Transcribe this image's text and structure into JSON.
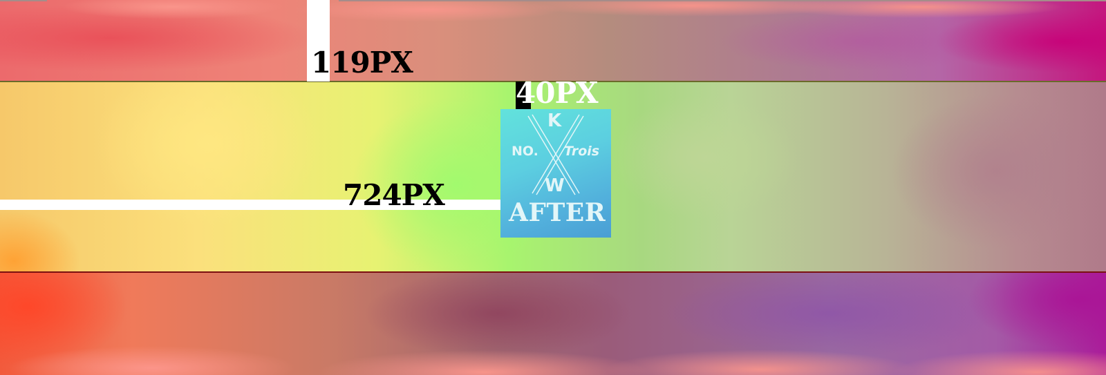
{
  "measurements": {
    "top_marker_label": "119PX",
    "side_marker_label": "724PX",
    "logo_marker_label": "40PX"
  },
  "logo": {
    "top_letter": "K",
    "bottom_letter": "W",
    "left_text": "NO.",
    "right_text": "Trois",
    "caption": "AFTER"
  },
  "colors": {
    "logo_fill": "#5ccfe0",
    "logo_text": "#e3f6f8",
    "marker_fill": "#ffffff",
    "label_dark": "#000000",
    "label_light": "#ffffff"
  }
}
